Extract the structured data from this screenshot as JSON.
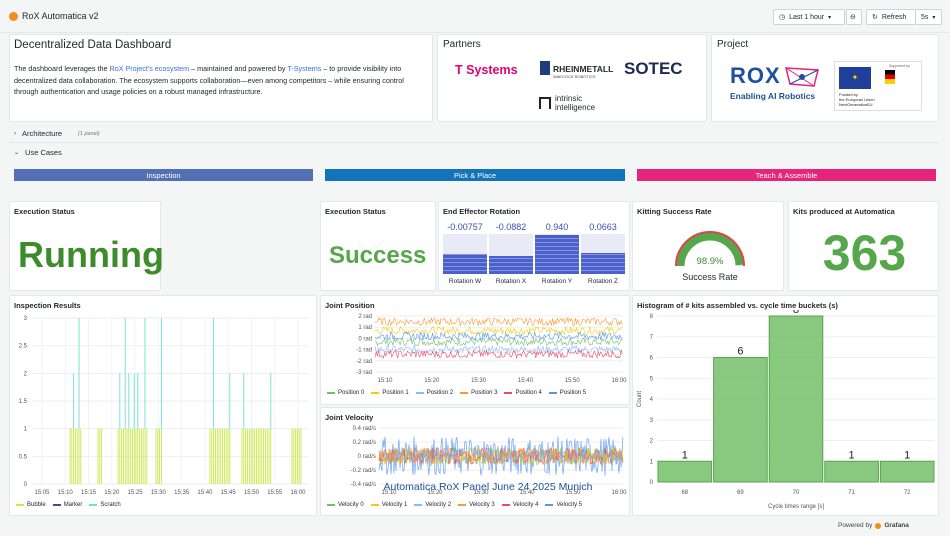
{
  "app": {
    "title": "RoX Automatica v2",
    "time_range": "Last 1 hour",
    "refresh": "Refresh",
    "refresh_interval": "5s",
    "powered_by": "Powered by",
    "powered_brand": "Grafana"
  },
  "intro": {
    "title": "Decentralized Data Dashboard",
    "text_a": "The dashboard leverages the ",
    "link1": "RoX Project's ecosystem",
    "text_b": " – maintained and powered by ",
    "link2": "T-Systems",
    "text_c": " – to provide visibility into decentralized data collaboration. The ecosystem supports collaboration—even among competitors – while ensuring control through authentication and usage policies on a robust managed infrastructure."
  },
  "partners": {
    "title": "Partners",
    "tsystems": "T Systems",
    "rheinmetall": "RHEINMETALL",
    "rheinmetall_sub": "WAECOCK ROBOTICS",
    "sotec": "SOTEC",
    "intrinsic1": "intrinsic",
    "intrinsic2": "intelligence"
  },
  "project": {
    "title": "Project",
    "rox": "ROX",
    "rox_sub": "Enabling AI Robotics",
    "eu_sub1": "Funded by",
    "eu_sub2": "the European Union",
    "eu_sub3": "NextGenerationEU",
    "eu_sup": "Supported by"
  },
  "rows": {
    "architecture": "Architecture",
    "architecture_count": "(1 panel)",
    "usecases": "Use Cases"
  },
  "sections": {
    "inspection": "Inspection",
    "pick": "Pick & Place",
    "teach": "Teach & Assemble"
  },
  "exec1": {
    "title": "Execution Status",
    "value": "Running"
  },
  "exec2": {
    "title": "Execution Status",
    "value": "Success"
  },
  "rotation": {
    "title": "End Effector Rotation",
    "items": [
      {
        "value": "-0.00757",
        "label": "Rotation W",
        "level": 0.5
      },
      {
        "value": "-0.0882",
        "label": "Rotation X",
        "level": 0.45
      },
      {
        "value": "0.940",
        "label": "Rotation Y",
        "level": 0.97
      },
      {
        "value": "0.0663",
        "label": "Rotation Z",
        "level": 0.52
      }
    ]
  },
  "kitting": {
    "title": "Kitting Success Rate",
    "value": "98.9%",
    "label": "Success Rate",
    "level": 0.989
  },
  "kits": {
    "title": "Kits produced at Automatica",
    "value": "363"
  },
  "inspection_results": {
    "title": "Inspection Results",
    "yticks": [
      "3",
      "2.5",
      "2",
      "1.5",
      "1",
      "0.5",
      "0"
    ],
    "xticks": [
      "15:05",
      "15:10",
      "15:15",
      "15:20",
      "15:25",
      "15:30",
      "15:35",
      "15:40",
      "15:45",
      "15:50",
      "15:55",
      "16:00"
    ],
    "legend": [
      "Bubble",
      "Marker",
      "Scratch"
    ]
  },
  "joint_position": {
    "title": "Joint Position",
    "yticks": [
      "2 rad",
      "1 rad",
      "0 rad",
      "-1 rad",
      "-2 rad",
      "-3 rad"
    ],
    "xticks": [
      "15:10",
      "15:20",
      "15:30",
      "15:40",
      "15:50",
      "16:00"
    ],
    "legend": [
      "Position 0",
      "Position 1",
      "Position 2",
      "Position 3",
      "Position 4",
      "Position 5"
    ]
  },
  "joint_velocity": {
    "title": "Joint Velocity",
    "yticks": [
      "0.4 rad/s",
      "0.2 rad/s",
      "0 rad/s",
      "-0.2 rad/s",
      "-0.4 rad/s"
    ],
    "xticks": [
      "15:10",
      "15:20",
      "15:30",
      "15:40",
      "15:50",
      "16:00"
    ],
    "legend": [
      "Velocity 0",
      "Velocity 1",
      "Velocity 2",
      "Velocity 3",
      "Velocity 4",
      "Velocity 5"
    ],
    "overlay": "Automatica RoX Panel June 24 2025 Munich"
  },
  "colors": {
    "inspection": "#5470b5",
    "pick": "#1273b8",
    "teach": "#e5247a",
    "green": "#3d8c2c",
    "stat_green": "#56a64b",
    "series": [
      "#73bf69",
      "#f2cc0c",
      "#8ab8ff",
      "#ff9830",
      "#f2495c",
      "#5794f2"
    ],
    "scratch": "#6fdfd2",
    "bubble": "#c8e84a",
    "marker": "#444c8c"
  },
  "chart_data": {
    "type": "bar",
    "title": "Histogram of # kits assembled vs. cycle time buckets (s)",
    "xlabel": "Cycle times range [s]",
    "ylabel": "Count",
    "categories": [
      "68",
      "69",
      "70",
      "71",
      "72"
    ],
    "values": [
      1,
      6,
      8,
      1,
      1
    ],
    "ylim": [
      0,
      8
    ],
    "yticks": [
      "0",
      "1",
      "2",
      "3",
      "4",
      "5",
      "6",
      "7",
      "8"
    ]
  }
}
